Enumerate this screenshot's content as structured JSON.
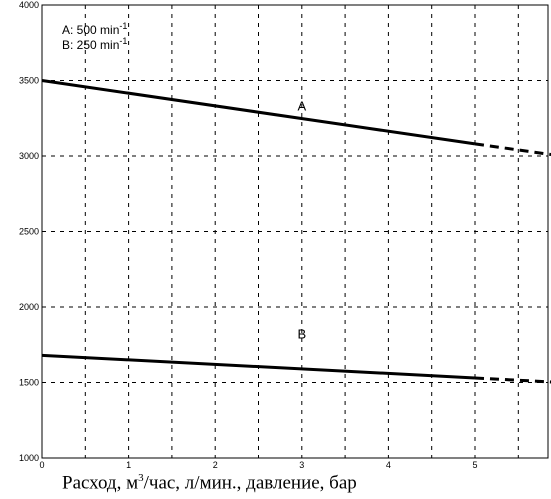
{
  "chart_data": {
    "type": "line",
    "x": [
      0,
      5,
      6
    ],
    "series": [
      {
        "name": "A",
        "values": [
          3500,
          3080,
          3000
        ],
        "solid_until": 5
      },
      {
        "name": "B",
        "values": [
          1680,
          1530,
          1500
        ],
        "solid_until": 5
      }
    ],
    "legend": [
      {
        "key": "A:",
        "value": "500 min",
        "exp": "-1"
      },
      {
        "key": "B:",
        "value": "250 min",
        "exp": "-1"
      }
    ],
    "xlim": [
      0,
      6
    ],
    "ylim": [
      1000,
      4000
    ],
    "xticks": [
      0,
      1,
      2,
      3,
      4,
      5
    ],
    "yticks": [
      1000,
      1500,
      2000,
      2500,
      3000,
      3500,
      4000
    ],
    "x_grid": [
      0.5,
      1,
      1.5,
      2,
      2.5,
      3,
      3.5,
      4,
      4.5,
      5,
      5.5
    ],
    "y_grid": [
      1500,
      2000,
      2500,
      3000,
      3500
    ],
    "series_label_positions": [
      {
        "name": "A",
        "x": 3,
        "y": 3300
      },
      {
        "name": "B",
        "x": 3,
        "y": 1790
      }
    ],
    "legend_placement": "top-left",
    "grid": true,
    "line_color": "#000000"
  },
  "caption": {
    "part1": "Расход, м",
    "sup": "3",
    "part2": "/час, л/мин., давление, бар"
  }
}
